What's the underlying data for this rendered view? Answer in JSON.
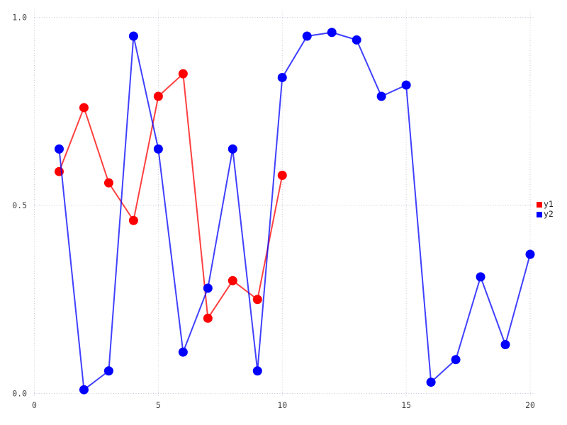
{
  "figure": {
    "background": "#ffffff",
    "grid_color": "#c9c9d8",
    "tick_label_color": "#444444"
  },
  "legend": {
    "items": [
      {
        "label": "y1",
        "color": "#ff0000"
      },
      {
        "label": "y2",
        "color": "#0000ff"
      }
    ]
  },
  "chart_data": {
    "type": "line",
    "title": "",
    "xlabel": "",
    "ylabel": "",
    "xlim": [
      0,
      20
    ],
    "ylim": [
      0,
      1
    ],
    "grid": true,
    "legend_position": "center-right",
    "x_ticks": {
      "values": [
        0,
        5,
        10,
        15,
        20
      ],
      "labels": [
        "0",
        "5",
        "10",
        "15",
        "20"
      ]
    },
    "y_ticks": {
      "values": [
        0,
        0.5,
        1
      ],
      "labels": [
        "0.0",
        "0.5",
        "1.0"
      ]
    },
    "series": [
      {
        "name": "y1",
        "color": "#ff0000",
        "x": [
          1,
          2,
          3,
          4,
          5,
          6,
          7,
          8,
          9,
          10
        ],
        "y": [
          0.59,
          0.76,
          0.56,
          0.46,
          0.79,
          0.85,
          0.2,
          0.3,
          0.25,
          0.58
        ]
      },
      {
        "name": "y2",
        "color": "#0000ff",
        "x": [
          1,
          2,
          3,
          4,
          5,
          6,
          7,
          8,
          9,
          10,
          11,
          12,
          13,
          14,
          15,
          16,
          17,
          18,
          19,
          20
        ],
        "y": [
          0.65,
          0.01,
          0.06,
          0.95,
          0.65,
          0.11,
          0.28,
          0.65,
          0.06,
          0.84,
          0.95,
          0.96,
          0.94,
          0.79,
          0.82,
          0.03,
          0.09,
          0.31,
          0.13,
          0.37
        ]
      }
    ]
  }
}
